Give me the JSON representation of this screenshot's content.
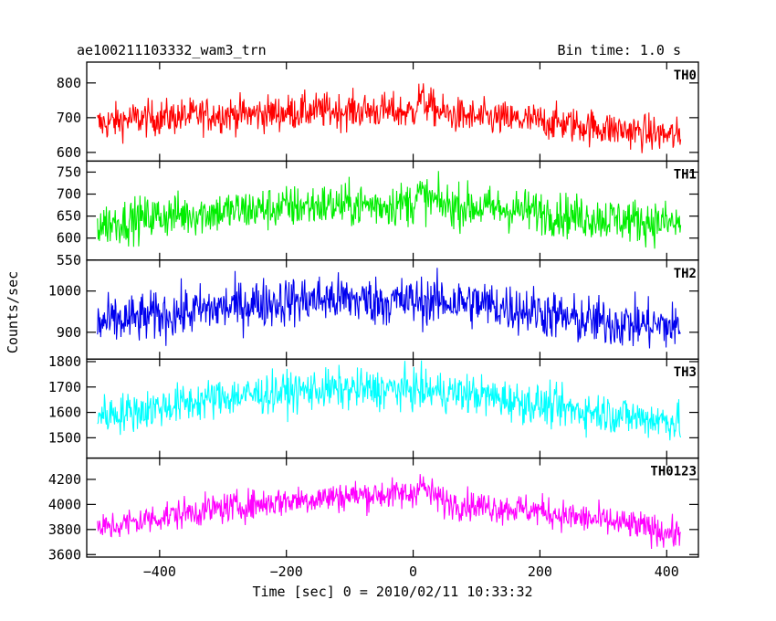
{
  "header": {
    "title": "ae100211103332_wam3_trn",
    "bin_time": "Bin time: 1.0 s"
  },
  "chart_data": {
    "type": "line",
    "title": "ae100211103332_wam3_trn",
    "subtitle": "Bin time: 1.0 s",
    "xlabel": "Time [sec] 0 = 2010/02/11 10:33:32",
    "ylabel": "Counts/sec",
    "xlim": [
      -515,
      450
    ],
    "x_ticks": [
      -400,
      -200,
      0,
      200,
      400
    ],
    "x_data_range": [
      -498,
      422
    ],
    "bin_time_s": 1.0,
    "grid": false,
    "legend": "none",
    "panels": [
      {
        "name": "TH0",
        "color": "#ff0000",
        "ylim": [
          575,
          860
        ],
        "y_ticks": [
          600,
          700,
          800
        ],
        "x": [
          -500,
          -450,
          -400,
          -350,
          -300,
          -250,
          -200,
          -150,
          -100,
          -50,
          0,
          10,
          20,
          50,
          100,
          150,
          200,
          250,
          300,
          350,
          400,
          420
        ],
        "values": [
          680,
          695,
          700,
          705,
          710,
          710,
          715,
          720,
          720,
          720,
          715,
          760,
          740,
          710,
          700,
          695,
          690,
          680,
          670,
          660,
          650,
          645
        ]
      },
      {
        "name": "TH1",
        "color": "#00ee00",
        "ylim": [
          550,
          775
        ],
        "y_ticks": [
          550,
          600,
          650,
          700,
          750
        ],
        "x": [
          -500,
          -450,
          -400,
          -350,
          -300,
          -250,
          -200,
          -150,
          -100,
          -50,
          0,
          10,
          20,
          50,
          100,
          150,
          200,
          250,
          300,
          350,
          400,
          420
        ],
        "values": [
          630,
          640,
          650,
          655,
          660,
          665,
          670,
          675,
          675,
          675,
          680,
          700,
          690,
          675,
          670,
          665,
          660,
          650,
          645,
          640,
          635,
          630
        ]
      },
      {
        "name": "TH2",
        "color": "#0000ee",
        "ylim": [
          835,
          1075
        ],
        "y_ticks": [
          900,
          1000
        ],
        "x": [
          -500,
          -450,
          -400,
          -350,
          -300,
          -250,
          -200,
          -150,
          -100,
          -50,
          0,
          50,
          100,
          150,
          200,
          250,
          300,
          350,
          400,
          420
        ],
        "values": [
          920,
          930,
          940,
          950,
          960,
          970,
          975,
          980,
          980,
          975,
          975,
          975,
          970,
          960,
          950,
          930,
          925,
          920,
          915,
          910
        ]
      },
      {
        "name": "TH3",
        "color": "#00ffff",
        "ylim": [
          1420,
          1810
        ],
        "y_ticks": [
          1500,
          1600,
          1700,
          1800
        ],
        "x": [
          -500,
          -450,
          -400,
          -350,
          -300,
          -250,
          -200,
          -150,
          -100,
          -50,
          0,
          50,
          100,
          150,
          200,
          250,
          300,
          350,
          400,
          420
        ],
        "values": [
          1590,
          1600,
          1620,
          1640,
          1660,
          1670,
          1680,
          1690,
          1690,
          1690,
          1690,
          1680,
          1670,
          1650,
          1630,
          1610,
          1600,
          1580,
          1570,
          1560
        ]
      },
      {
        "name": "TH0123",
        "color": "#ff00ff",
        "ylim": [
          3580,
          4370
        ],
        "y_ticks": [
          3600,
          3800,
          4000,
          4200
        ],
        "x": [
          -500,
          -450,
          -400,
          -350,
          -300,
          -250,
          -200,
          -150,
          -100,
          -50,
          0,
          10,
          20,
          50,
          100,
          150,
          200,
          250,
          300,
          350,
          400,
          420
        ],
        "values": [
          3800,
          3850,
          3900,
          3940,
          3970,
          4000,
          4030,
          4050,
          4070,
          4080,
          4080,
          4180,
          4110,
          4020,
          3990,
          3970,
          3950,
          3900,
          3870,
          3830,
          3780,
          3760
        ]
      }
    ]
  }
}
